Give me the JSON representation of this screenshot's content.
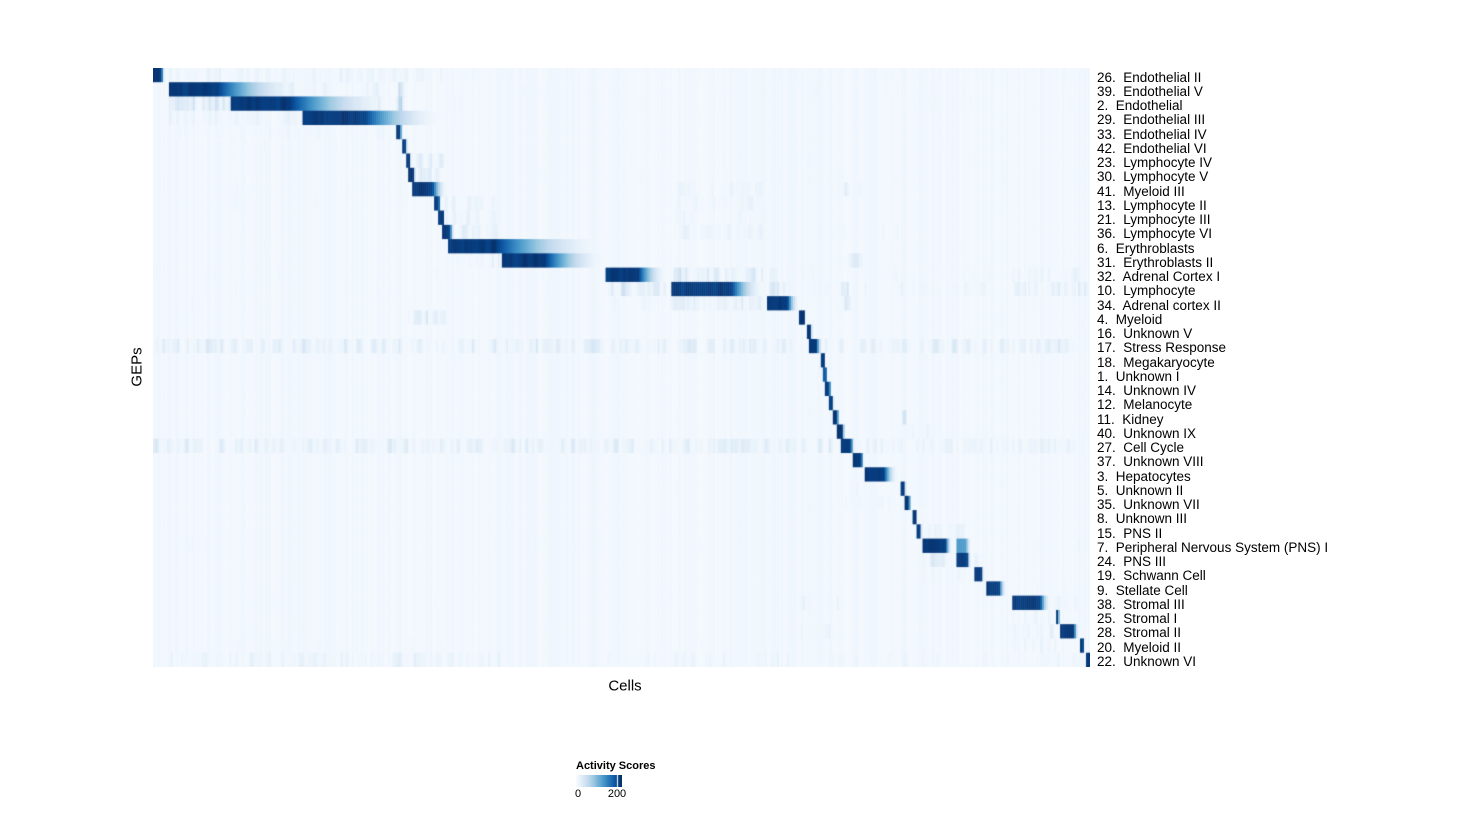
{
  "chart_data": {
    "type": "heatmap",
    "title": "",
    "xlabel": "Cells",
    "ylabel": "GEPs",
    "colorbar": {
      "title": "Activity Scores",
      "min_label": "0",
      "max_label": "200",
      "tick_values": [
        0,
        200
      ]
    },
    "colormap": [
      "#f7fbff",
      "#deebf7",
      "#c6dbef",
      "#9ecae1",
      "#6baed6",
      "#4292c6",
      "#2171b5",
      "#08519c",
      "#08306b"
    ],
    "value_scale_note": "block/band intensities normalized 0-1 where 1 = activity score >= 200 (dark navy)",
    "rows": [
      {
        "label": "26.  Endothelial II",
        "blocks": [
          [
            0.0,
            0.009,
            0.013,
            1
          ]
        ],
        "bands": [
          [
            0.016,
            0.31,
            0.12
          ],
          [
            0.32,
            1,
            0.05
          ]
        ]
      },
      {
        "label": "39.  Endothelial V",
        "blocks": [
          [
            0.016,
            0.068,
            0.16,
            1
          ]
        ],
        "bands": [
          [
            0.084,
            0.155,
            0.22
          ],
          [
            0.159,
            0.242,
            0.15
          ],
          [
            0.26,
            0.268,
            0.45
          ],
          [
            0.3,
            1,
            0.05
          ]
        ]
      },
      {
        "label": "2.  Endothelial",
        "blocks": [
          [
            0.084,
            0.145,
            0.26,
            1
          ]
        ],
        "bands": [
          [
            0.016,
            0.082,
            0.25
          ],
          [
            0.159,
            0.242,
            0.2
          ],
          [
            0.26,
            0.268,
            0.4
          ],
          [
            0.3,
            1,
            0.05
          ]
        ]
      },
      {
        "label": "29.  Endothelial III",
        "blocks": [
          [
            0.159,
            0.225,
            0.31,
            1
          ]
        ],
        "bands": [
          [
            0.016,
            0.155,
            0.13
          ],
          [
            0.32,
            1,
            0.04
          ]
        ]
      },
      {
        "label": "33.  Endothelial IV",
        "blocks": [
          [
            0.259,
            0.264,
            0.267,
            1
          ]
        ],
        "bands": [
          [
            0.016,
            0.25,
            0.07
          ],
          [
            0.27,
            1,
            0.04
          ]
        ]
      },
      {
        "label": "42.  Endothelial VI",
        "blocks": [
          [
            0.266,
            0.27,
            0.272,
            1
          ]
        ],
        "bands": [
          [
            0.016,
            0.25,
            0.05
          ],
          [
            0.28,
            1,
            0.04
          ]
        ]
      },
      {
        "label": "23.  Lymphocyte IV",
        "blocks": [
          [
            0.27,
            0.274,
            0.276,
            1
          ]
        ],
        "bands": [
          [
            0.277,
            0.31,
            0.2
          ],
          [
            0.32,
            1,
            0.05
          ]
        ]
      },
      {
        "label": "30.  Lymphocyte V",
        "blocks": [
          [
            0.273,
            0.278,
            0.281,
            1
          ]
        ],
        "bands": [
          [
            0.282,
            0.31,
            0.28
          ],
          [
            0.32,
            1,
            0.05
          ]
        ]
      },
      {
        "label": "41.  Myeloid III",
        "blocks": [
          [
            0.276,
            0.298,
            0.314,
            1
          ]
        ],
        "bands": [
          [
            0.554,
            0.65,
            0.1
          ],
          [
            0.73,
            0.76,
            0.18
          ],
          [
            0.0,
            0.27,
            0.05
          ],
          [
            0.32,
            1,
            0.04
          ]
        ]
      },
      {
        "label": "13.  Lymphocyte II",
        "blocks": [
          [
            0.3,
            0.305,
            0.308,
            1
          ]
        ],
        "bands": [
          [
            0.31,
            0.37,
            0.16
          ],
          [
            0.554,
            0.65,
            0.1
          ],
          [
            0.0,
            0.29,
            0.05
          ]
        ]
      },
      {
        "label": "21.  Lymphocyte III",
        "blocks": [
          [
            0.305,
            0.31,
            0.312,
            1
          ]
        ],
        "bands": [
          [
            0.313,
            0.37,
            0.13
          ],
          [
            0.554,
            0.65,
            0.08
          ]
        ]
      },
      {
        "label": "36.  Lymphocyte VI",
        "blocks": [
          [
            0.308,
            0.317,
            0.322,
            1
          ]
        ],
        "bands": [
          [
            0.323,
            0.37,
            0.2
          ],
          [
            0.554,
            0.65,
            0.12
          ],
          [
            0.71,
            0.8,
            0.08
          ],
          [
            0.0,
            0.3,
            0.04
          ]
        ]
      },
      {
        "label": "6.  Erythroblasts",
        "blocks": [
          [
            0.314,
            0.365,
            0.484,
            1
          ]
        ],
        "bands": [
          [
            0.0,
            0.31,
            0.04
          ],
          [
            0.49,
            1,
            0.04
          ]
        ]
      },
      {
        "label": "31.  Erythroblasts II",
        "blocks": [
          [
            0.372,
            0.418,
            0.484,
            1
          ]
        ],
        "bands": [
          [
            0.314,
            0.37,
            0.13
          ],
          [
            0.74,
            0.758,
            0.2
          ],
          [
            0.49,
            1,
            0.04
          ]
        ]
      },
      {
        "label": "32.  Adrenal Cortex I",
        "blocks": [
          [
            0.484,
            0.518,
            0.549,
            1
          ]
        ],
        "bands": [
          [
            0.554,
            0.652,
            0.28
          ],
          [
            0.657,
            0.678,
            0.14
          ],
          [
            0.69,
            0.9,
            0.06
          ],
          [
            0.918,
            0.958,
            0.12
          ],
          [
            0.962,
            0.99,
            0.1
          ],
          [
            0.0,
            0.48,
            0.05
          ]
        ]
      },
      {
        "label": "10.  Lymphocyte",
        "blocks": [
          [
            0.554,
            0.617,
            0.653,
            1
          ]
        ],
        "bands": [
          [
            0.484,
            0.549,
            0.25
          ],
          [
            0.657,
            0.68,
            0.2
          ],
          [
            0.7,
            0.9,
            0.09
          ],
          [
            0.918,
            0.998,
            0.18
          ],
          [
            0.735,
            0.742,
            0.5
          ],
          [
            0.0,
            0.48,
            0.05
          ]
        ]
      },
      {
        "label": "34.  Adrenal cortex II",
        "blocks": [
          [
            0.655,
            0.677,
            0.69,
            1
          ]
        ],
        "bands": [
          [
            0.554,
            0.652,
            0.18
          ],
          [
            0.484,
            0.549,
            0.1
          ],
          [
            0.7,
            1,
            0.05
          ],
          [
            0.735,
            0.745,
            0.3
          ],
          [
            0.0,
            0.48,
            0.04
          ]
        ]
      },
      {
        "label": "4.  Myeloid",
        "blocks": [
          [
            0.69,
            0.695,
            0.697,
            1
          ]
        ],
        "bands": [
          [
            0.272,
            0.312,
            0.22
          ],
          [
            0.0,
            0.27,
            0.04
          ],
          [
            0.7,
            1,
            0.05
          ]
        ]
      },
      {
        "label": "16.  Unknown V",
        "blocks": [
          [
            0.697,
            0.702,
            0.704,
            1
          ]
        ],
        "bands": [
          [
            0.0,
            0.69,
            0.04
          ],
          [
            0.706,
            1,
            0.04
          ]
        ]
      },
      {
        "label": "17.  Stress Response",
        "blocks": [
          [
            0.699,
            0.708,
            0.715,
            1
          ]
        ],
        "bands": [
          [
            0.0,
            0.696,
            0.2
          ],
          [
            0.717,
            1,
            0.2
          ]
        ]
      },
      {
        "label": "18.  Megakaryocyte",
        "blocks": [
          [
            0.712,
            0.716,
            0.718,
            1
          ]
        ],
        "bands": [
          [
            0.26,
            0.41,
            0.06
          ],
          [
            0.0,
            0.25,
            0.03
          ],
          [
            0.72,
            1,
            0.03
          ]
        ]
      },
      {
        "label": "1.  Unknown I",
        "blocks": [
          [
            0.715,
            0.7185,
            0.72,
            0.85
          ]
        ],
        "bands": [
          [
            0.0,
            0.71,
            0.03
          ],
          [
            0.73,
            1,
            0.03
          ]
        ]
      },
      {
        "label": "14.  Unknown IV",
        "blocks": [
          [
            0.718,
            0.722,
            0.724,
            1
          ]
        ],
        "bands": [
          [
            0.0,
            0.71,
            0.03
          ],
          [
            0.73,
            1,
            0.03
          ]
        ]
      },
      {
        "label": "12.  Melanocyte",
        "blocks": [
          [
            0.721,
            0.7255,
            0.727,
            1
          ]
        ],
        "bands": [
          [
            0.0,
            0.71,
            0.03
          ],
          [
            0.73,
            1,
            0.03
          ]
        ]
      },
      {
        "label": "11.  Kidney",
        "blocks": [
          [
            0.7255,
            0.7305,
            0.732,
            1
          ]
        ],
        "bands": [
          [
            0.799,
            0.804,
            0.4
          ],
          [
            0.0,
            0.72,
            0.03
          ]
        ]
      },
      {
        "label": "40.  Unknown IX",
        "blocks": [
          [
            0.729,
            0.736,
            0.739,
            1
          ]
        ],
        "bands": [
          [
            0.797,
            0.83,
            0.13
          ],
          [
            0.0,
            0.72,
            0.04
          ],
          [
            0.74,
            1,
            0.03
          ]
        ]
      },
      {
        "label": "27.  Cell Cycle",
        "blocks": [
          [
            0.735,
            0.745,
            0.749,
            1
          ]
        ],
        "bands": [
          [
            0.0,
            0.732,
            0.2
          ],
          [
            0.752,
            1,
            0.13
          ]
        ]
      },
      {
        "label": "37.  Unknown VIII",
        "blocks": [
          [
            0.746,
            0.756,
            0.759,
            1
          ]
        ],
        "bands": [
          [
            0.0,
            0.74,
            0.05
          ],
          [
            0.76,
            1,
            0.04
          ]
        ]
      },
      {
        "label": "3.  Hepatocytes",
        "blocks": [
          [
            0.759,
            0.78,
            0.795,
            1
          ]
        ],
        "bands": [
          [
            0.0,
            0.75,
            0.03
          ]
        ]
      },
      {
        "label": "5.  Unknown II",
        "blocks": [
          [
            0.797,
            0.802,
            0.804,
            1
          ]
        ],
        "bands": [
          [
            0.73,
            0.76,
            0.08
          ],
          [
            0.0,
            0.7,
            0.03
          ]
        ]
      },
      {
        "label": "35.  Unknown VII",
        "blocks": [
          [
            0.802,
            0.807,
            0.809,
            1
          ]
        ],
        "bands": [
          [
            0.73,
            0.79,
            0.07
          ],
          [
            0.0,
            0.7,
            0.03
          ]
        ]
      },
      {
        "label": "8.  Unknown III",
        "blocks": [
          [
            0.81,
            0.814,
            0.816,
            1
          ]
        ],
        "bands": [
          [
            0.0,
            0.8,
            0.03
          ],
          [
            0.82,
            1,
            0.03
          ]
        ]
      },
      {
        "label": "15.  PNS II",
        "blocks": [
          [
            0.814,
            0.819,
            0.821,
            1
          ]
        ],
        "bands": [
          [
            0.822,
            0.88,
            0.13
          ],
          [
            0.0,
            0.8,
            0.03
          ]
        ]
      },
      {
        "label": "7.  Peripheral Nervous System (PNS) I",
        "blocks": [
          [
            0.821,
            0.846,
            0.853,
            1
          ],
          [
            0.858,
            0.868,
            0.873,
            0.6
          ]
        ],
        "bands": [
          [
            0.0,
            0.81,
            0.05
          ],
          [
            0.885,
            1,
            0.06
          ]
        ]
      },
      {
        "label": "24.  PNS III",
        "blocks": [
          [
            0.858,
            0.869,
            0.873,
            1
          ]
        ],
        "bands": [
          [
            0.821,
            0.853,
            0.22
          ],
          [
            0.875,
            0.885,
            0.12
          ],
          [
            0.0,
            0.81,
            0.03
          ]
        ]
      },
      {
        "label": "19.  Schwann Cell",
        "blocks": [
          [
            0.877,
            0.884,
            0.887,
            1
          ]
        ],
        "bands": [
          [
            0.821,
            0.87,
            0.1
          ],
          [
            0.0,
            0.8,
            0.03
          ]
        ]
      },
      {
        "label": "9.  Stellate Cell",
        "blocks": [
          [
            0.89,
            0.903,
            0.911,
            1
          ]
        ],
        "bands": [
          [
            0.914,
            1,
            0.05
          ],
          [
            0.0,
            0.88,
            0.03
          ]
        ]
      },
      {
        "label": "38.  Stromal III",
        "blocks": [
          [
            0.917,
            0.947,
            0.958,
            1
          ]
        ],
        "bands": [
          [
            0.69,
            0.732,
            0.13
          ],
          [
            0.655,
            0.688,
            0.07
          ],
          [
            0.0,
            0.65,
            0.04
          ],
          [
            0.962,
            1,
            0.1
          ]
        ]
      },
      {
        "label": "25.  Stromal I",
        "blocks": [
          [
            0.963,
            0.9665,
            0.968,
            1
          ]
        ],
        "bands": [
          [
            0.918,
            0.958,
            0.1
          ],
          [
            0.0,
            0.9,
            0.03
          ]
        ]
      },
      {
        "label": "28.  Stromal II",
        "blocks": [
          [
            0.969,
            0.983,
            0.988,
            1
          ]
        ],
        "bands": [
          [
            0.918,
            0.962,
            0.13
          ],
          [
            0.69,
            0.732,
            0.09
          ],
          [
            0.0,
            0.65,
            0.04
          ]
        ]
      },
      {
        "label": "20.  Myeloid II",
        "blocks": [
          [
            0.99,
            0.9925,
            0.994,
            1
          ]
        ],
        "bands": [
          [
            0.918,
            0.985,
            0.1
          ],
          [
            0.0,
            0.4,
            0.05
          ],
          [
            0.49,
            0.69,
            0.04
          ]
        ]
      },
      {
        "label": "22.  Unknown VI",
        "blocks": [
          [
            0.9955,
            1.0,
            1.0,
            1
          ]
        ],
        "bands": [
          [
            0.016,
            0.37,
            0.13
          ],
          [
            0.486,
            0.69,
            0.1
          ],
          [
            0.7,
            0.99,
            0.07
          ]
        ]
      }
    ]
  }
}
